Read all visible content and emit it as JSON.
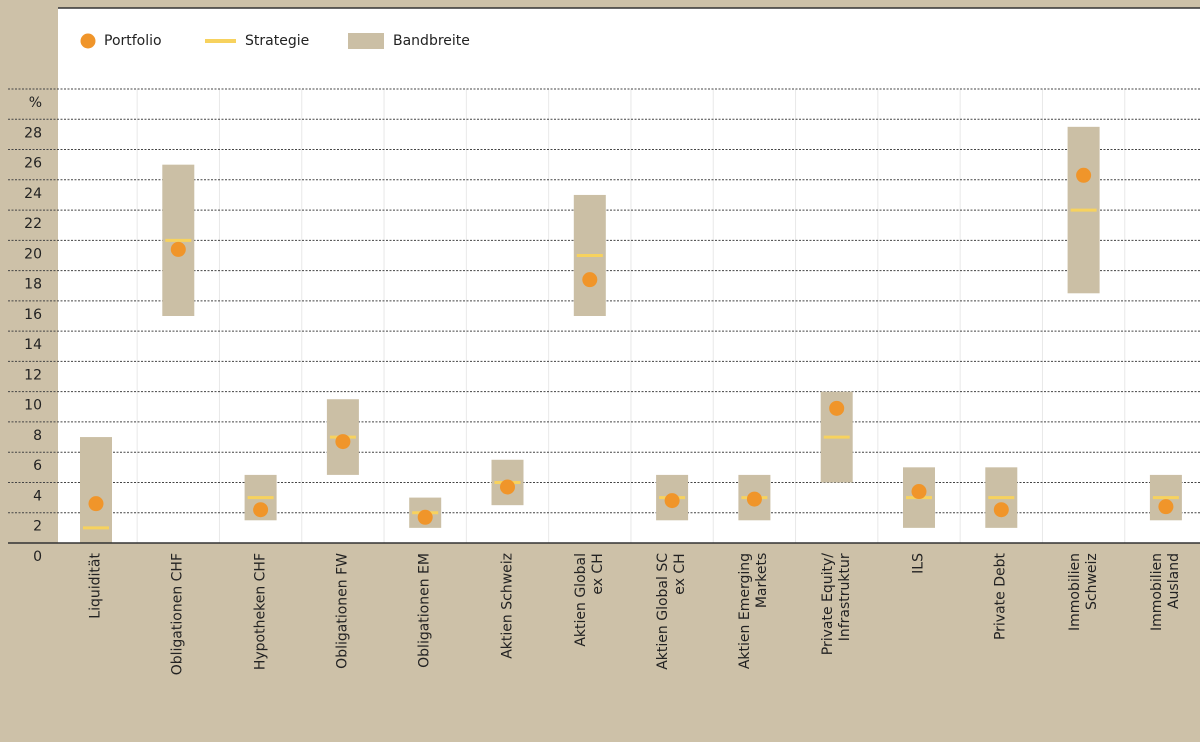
{
  "chart_data": {
    "type": "range-dot",
    "y_unit": "%",
    "categories": [
      "Liquidität",
      "Obligationen CHF",
      "Hypotheken CHF",
      "Obligationen FW",
      "Obligationen EM",
      "Aktien Schweiz",
      "Aktien Global\nex CH",
      "Aktien Global SC\nex CH",
      "Aktien Emerging\nMarkets",
      "Private Equity/\nInfrastruktur",
      "ILS",
      "Private Debt",
      "Immobilien\nSchweiz",
      "Immobilien\nAusland"
    ],
    "series": [
      {
        "name": "Portfolio",
        "color": "#f0952a",
        "values": [
          2.6,
          19.4,
          2.2,
          6.7,
          1.7,
          3.7,
          17.4,
          2.8,
          2.9,
          8.9,
          3.4,
          2.2,
          24.3,
          2.4
        ]
      },
      {
        "name": "Strategie",
        "color": "#f7d25e",
        "values": [
          1,
          20,
          3,
          7,
          2,
          4,
          19,
          3,
          3,
          7,
          3,
          3,
          22,
          3
        ]
      },
      {
        "name": "Bandbreite",
        "color": "#cbbfa5",
        "values": [
          [
            0,
            7
          ],
          [
            15,
            25
          ],
          [
            1.5,
            4.5
          ],
          [
            4.5,
            9.5
          ],
          [
            1,
            3
          ],
          [
            2.5,
            5.5
          ],
          [
            15,
            23
          ],
          [
            1.5,
            4.5
          ],
          [
            1.5,
            4.5
          ],
          [
            4,
            10
          ],
          [
            1,
            5
          ],
          [
            1,
            5
          ],
          [
            16.5,
            27.5
          ],
          [
            1.5,
            4.5
          ]
        ]
      }
    ],
    "ylim": [
      0,
      30
    ],
    "yticks": [
      0,
      2,
      4,
      6,
      8,
      10,
      12,
      14,
      16,
      18,
      20,
      22,
      24,
      26,
      28
    ],
    "grid": true
  }
}
